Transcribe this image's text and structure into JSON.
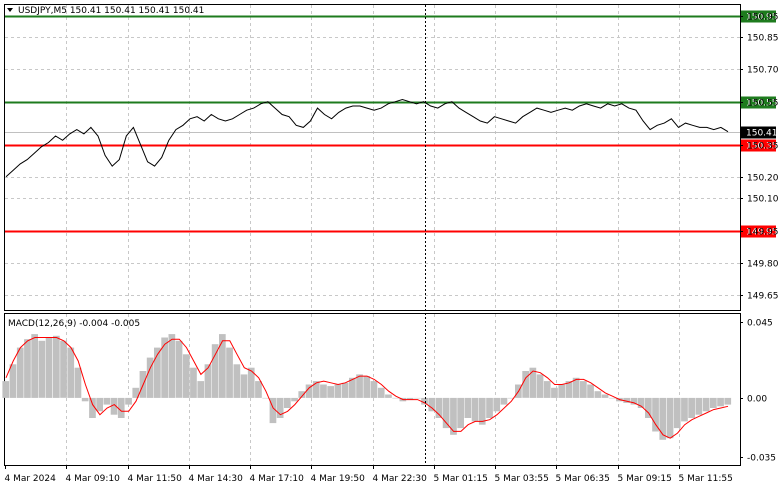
{
  "window": {
    "title": "USDJPY,M5  150.41 150.41 150.41 150.41",
    "dropdown_icon": "triangle-down-icon"
  },
  "indicator": {
    "title": "MACD(12,26,9) -0.004 -0.005"
  },
  "colors": {
    "price_line": "#000000",
    "green_level": "#1e7b1e",
    "red_level": "#ff0000",
    "current_price_bg": "#000000",
    "grid": "#c8c8c8",
    "histogram": "#c0c0c0",
    "signal_line": "#ff0000"
  },
  "chart_data": [
    {
      "type": "line",
      "name": "price",
      "ylim": [
        149.58,
        151.0
      ],
      "y_ticks": [
        "150.95",
        "150.85",
        "150.70",
        "150.55",
        "150.35",
        "150.20",
        "150.10",
        "149.95",
        "149.80",
        "149.65"
      ],
      "x_ticks": [
        "4 Mar 2024",
        "4 Mar 09:10",
        "4 Mar 11:50",
        "4 Mar 14:30",
        "4 Mar 17:10",
        "4 Mar 19:50",
        "4 Mar 22:30",
        "5 Mar 01:15",
        "5 Mar 03:55",
        "5 Mar 06:35",
        "5 Mar 09:15",
        "5 Mar 11:55"
      ],
      "levels": [
        {
          "value": 150.95,
          "label": "150.95",
          "color": "green"
        },
        {
          "value": 150.55,
          "label": "150.55",
          "color": "green"
        },
        {
          "value": 150.35,
          "label": "150.35",
          "color": "red"
        },
        {
          "value": 149.95,
          "label": "149.95",
          "color": "red"
        }
      ],
      "current_price": {
        "value": 150.41,
        "label": "150.41"
      },
      "series_values": [
        150.2,
        150.23,
        150.26,
        150.28,
        150.31,
        150.34,
        150.36,
        150.39,
        150.37,
        150.4,
        150.42,
        150.4,
        150.43,
        150.39,
        150.3,
        150.25,
        150.28,
        150.39,
        150.43,
        150.35,
        150.27,
        150.25,
        150.29,
        150.37,
        150.42,
        150.44,
        150.47,
        150.48,
        150.46,
        150.49,
        150.47,
        150.46,
        150.47,
        150.49,
        150.51,
        150.52,
        150.54,
        150.55,
        150.52,
        150.49,
        150.48,
        150.44,
        150.43,
        150.46,
        150.52,
        150.49,
        150.47,
        150.5,
        150.52,
        150.53,
        150.53,
        150.52,
        150.51,
        150.52,
        150.54,
        150.55,
        150.56,
        150.55,
        150.54,
        150.55,
        150.53,
        150.52,
        150.54,
        150.55,
        150.52,
        150.5,
        150.48,
        150.46,
        150.45,
        150.48,
        150.47,
        150.46,
        150.45,
        150.48,
        150.5,
        150.52,
        150.51,
        150.5,
        150.51,
        150.52,
        150.51,
        150.53,
        150.54,
        150.53,
        150.52,
        150.54,
        150.53,
        150.54,
        150.52,
        150.51,
        150.46,
        150.42,
        150.44,
        150.45,
        150.47,
        150.43,
        150.45,
        150.44,
        150.43,
        150.43,
        150.42,
        150.43,
        150.41
      ]
    },
    {
      "type": "bar",
      "name": "MACD(12,26,9)",
      "ylim": [
        -0.04,
        0.05
      ],
      "y_ticks": [
        "0.045",
        "0.00",
        "-0.035"
      ],
      "histogram": [
        0.01,
        0.02,
        0.03,
        0.035,
        0.038,
        0.034,
        0.036,
        0.037,
        0.034,
        0.03,
        0.018,
        -0.002,
        -0.012,
        -0.008,
        -0.004,
        -0.01,
        -0.012,
        -0.004,
        0.006,
        0.016,
        0.024,
        0.03,
        0.036,
        0.038,
        0.034,
        0.026,
        0.018,
        0.01,
        0.02,
        0.032,
        0.038,
        0.03,
        0.02,
        0.014,
        0.018,
        0.01,
        0.0,
        -0.015,
        -0.012,
        -0.006,
        -0.002,
        0.004,
        0.008,
        0.01,
        0.008,
        0.007,
        0.008,
        0.009,
        0.012,
        0.014,
        0.013,
        0.01,
        0.006,
        0.002,
        0.0,
        -0.002,
        -0.001,
        0.0,
        -0.004,
        -0.008,
        -0.012,
        -0.018,
        -0.022,
        -0.018,
        -0.012,
        -0.014,
        -0.016,
        -0.012,
        -0.008,
        -0.004,
        0.0,
        0.008,
        0.016,
        0.018,
        0.014,
        0.01,
        0.006,
        0.008,
        0.01,
        0.012,
        0.01,
        0.008,
        0.004,
        0.002,
        0.0,
        -0.002,
        -0.003,
        -0.004,
        -0.006,
        -0.012,
        -0.02,
        -0.025,
        -0.024,
        -0.018,
        -0.014,
        -0.012,
        -0.01,
        -0.008,
        -0.006,
        -0.005,
        -0.004
      ],
      "signal_values": [
        0.012,
        0.022,
        0.03,
        0.034,
        0.036,
        0.036,
        0.036,
        0.036,
        0.034,
        0.03,
        0.022,
        0.008,
        -0.004,
        -0.01,
        -0.006,
        -0.004,
        -0.008,
        -0.008,
        -0.002,
        0.008,
        0.018,
        0.026,
        0.032,
        0.035,
        0.035,
        0.03,
        0.022,
        0.014,
        0.018,
        0.026,
        0.034,
        0.034,
        0.026,
        0.018,
        0.016,
        0.012,
        0.004,
        -0.006,
        -0.01,
        -0.008,
        -0.004,
        0.001,
        0.006,
        0.009,
        0.01,
        0.009,
        0.008,
        0.009,
        0.011,
        0.013,
        0.013,
        0.011,
        0.008,
        0.004,
        0.001,
        -0.001,
        -0.001,
        -0.001,
        -0.003,
        -0.006,
        -0.01,
        -0.015,
        -0.02,
        -0.02,
        -0.016,
        -0.014,
        -0.014,
        -0.013,
        -0.01,
        -0.006,
        -0.002,
        0.004,
        0.012,
        0.016,
        0.015,
        0.012,
        0.008,
        0.008,
        0.009,
        0.011,
        0.011,
        0.009,
        0.006,
        0.003,
        0.001,
        -0.001,
        -0.002,
        -0.003,
        -0.005,
        -0.009,
        -0.016,
        -0.022,
        -0.024,
        -0.021,
        -0.016,
        -0.013,
        -0.011,
        -0.009,
        -0.007,
        -0.006,
        -0.005
      ]
    }
  ]
}
